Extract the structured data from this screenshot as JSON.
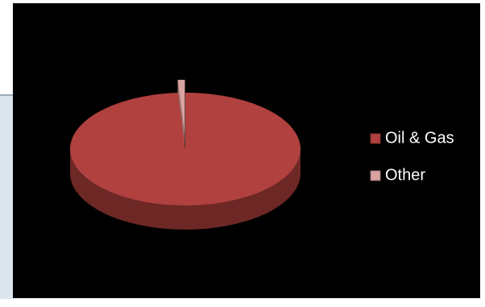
{
  "chart_data": {
    "type": "pie3d",
    "categories": [
      "Oil & Gas",
      "Other"
    ],
    "values": [
      99,
      1
    ],
    "colors": [
      "#b0413e",
      "#d9a3a1"
    ],
    "legend": "right"
  }
}
